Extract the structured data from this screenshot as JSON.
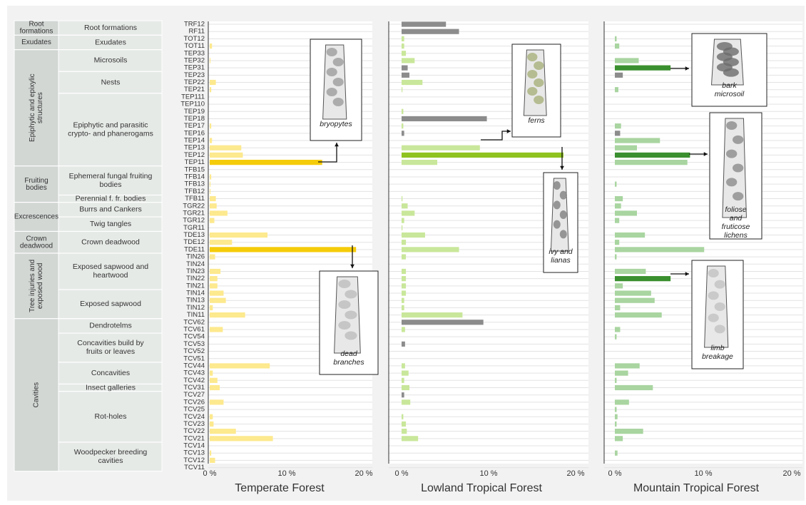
{
  "chart_data": {
    "type": "bar",
    "orientation": "horizontal",
    "facets": [
      {
        "title": "Temperate Forest",
        "xticks": [
          "0 %",
          "10 %",
          "20 %"
        ],
        "xlim": [
          0,
          20
        ]
      },
      {
        "title": "Lowland Tropical Forest",
        "xticks": [
          "0 %",
          "10 %",
          "20 %"
        ],
        "xlim": [
          0,
          20
        ]
      },
      {
        "title": "Mountain Tropical Forest",
        "xticks": [
          "0 %",
          "10 %",
          "20 %"
        ],
        "xlim": [
          0,
          20
        ]
      }
    ],
    "colors": {
      "temperate_light": "#fde98e",
      "temperate_highlight": "#f5cc0a",
      "lowland_light": "#c9e79a",
      "lowland_highlight": "#8fc31f",
      "lowland_grey": "#8c8c8c",
      "mountain_light": "#a9d5a0",
      "mountain_highlight": "#3a8f2e",
      "mountain_grey": "#8c8c8c",
      "group_bg": "#d2d7d4",
      "form_bg": "#e6eae7"
    },
    "categories": [
      "TRF12",
      "RF11",
      "TOT12",
      "TOT11",
      "TEP33",
      "TEP32",
      "TEP31",
      "TEP23",
      "TEP22",
      "TEP21",
      "TEP111",
      "TEP110",
      "TEP19",
      "TEP18",
      "TEP17",
      "TEP16",
      "TEP14",
      "TEP13",
      "TEP12",
      "TEP11",
      "TFB15",
      "TFB14",
      "TFB13",
      "TFB12",
      "TFB11",
      "TGR22",
      "TGR21",
      "TGR12",
      "TGR11",
      "TDE13",
      "TDE12",
      "TDE11",
      "TIN26",
      "TIN24",
      "TIN23",
      "TIN22",
      "TIN21",
      "TIN14",
      "TIN13",
      "TIN12",
      "TIN11",
      "TCV62",
      "TCV61",
      "TCV54",
      "TCV53",
      "TCV52",
      "TCV51",
      "TCV44",
      "TCV43",
      "TCV42",
      "TCV31",
      "TCV27",
      "TCV26",
      "TCV25",
      "TCV24",
      "TCV23",
      "TCV22",
      "TCV21",
      "TCV14",
      "TCV13",
      "TCV12",
      "TCV11"
    ],
    "series": [
      {
        "name": "Temperate Forest",
        "values": [
          0,
          0,
          0,
          0.3,
          0,
          0.1,
          0,
          0,
          0.8,
          0.2,
          0,
          0,
          0,
          0,
          0.2,
          0,
          0.3,
          4.1,
          4.3,
          14.6,
          0,
          0.2,
          0.1,
          0.1,
          0.8,
          0.9,
          2.3,
          0.6,
          0,
          7.5,
          2.9,
          19,
          0.7,
          0,
          1.4,
          1,
          1,
          1.8,
          2.1,
          0.4,
          4.6,
          0,
          1.7,
          0,
          0,
          0,
          0,
          7.8,
          0.4,
          1,
          1.3,
          0,
          1.8,
          0,
          0.4,
          0.5,
          3.4,
          8.2,
          0,
          0.2,
          0.7,
          0
        ]
      },
      {
        "name": "Lowland Tropical Forest",
        "values": [
          5.1,
          6.6,
          0.3,
          0.3,
          0.5,
          1.5,
          0.7,
          0.9,
          2.4,
          0.1,
          0,
          0,
          0.2,
          9.8,
          0.2,
          0.3,
          0,
          9,
          18.6,
          4.1,
          0,
          0,
          0,
          0,
          0.1,
          0.7,
          1.5,
          0.3,
          0.1,
          2.7,
          0.5,
          6.6,
          0.5,
          0,
          0.5,
          0.5,
          0.5,
          0.5,
          0.3,
          0.3,
          7,
          9.4,
          0.4,
          0,
          0.4,
          0,
          0,
          0.4,
          0.8,
          0.3,
          0.9,
          0.3,
          1,
          0,
          0.2,
          0.5,
          0.6,
          1.9,
          0,
          0,
          0,
          0
        ]
      },
      {
        "name": "Mountain Tropical Forest",
        "values": [
          0,
          0,
          0.2,
          0.5,
          0,
          2.7,
          6.3,
          0.9,
          0,
          0.4,
          0,
          0,
          0,
          0,
          0.7,
          0.6,
          5.1,
          2.5,
          8.5,
          8.2,
          0,
          0,
          0.2,
          0,
          0.9,
          0.7,
          2.5,
          0.5,
          0,
          3.4,
          0.5,
          10.1,
          0.2,
          0,
          3.5,
          6.3,
          0.9,
          4.1,
          4.5,
          0.6,
          5.3,
          0,
          0.6,
          0.2,
          0,
          0,
          0,
          2.8,
          1.5,
          0.2,
          4.3,
          0,
          1.6,
          0.2,
          0.3,
          0.2,
          3.2,
          0.9,
          0,
          0.3,
          0,
          0
        ]
      }
    ],
    "highlight": [
      {
        "facet": 0,
        "category": "TEP11",
        "color": "temperate_highlight"
      },
      {
        "facet": 0,
        "category": "TDE11",
        "color": "temperate_highlight"
      },
      {
        "facet": 1,
        "category": "TEP14",
        "color": "lowland_highlight"
      },
      {
        "facet": 1,
        "category": "TEP12",
        "color": "lowland_highlight"
      },
      {
        "facet": 2,
        "category": "TEP31",
        "color": "mountain_highlight"
      },
      {
        "facet": 2,
        "category": "TEP12",
        "color": "mountain_highlight"
      },
      {
        "facet": 2,
        "category": "TIN22",
        "color": "mountain_highlight"
      }
    ],
    "grey_bars": [
      {
        "facet": 1,
        "categories": [
          "TRF12",
          "RF11",
          "TEP31",
          "TEP23",
          "TEP18",
          "TEP16",
          "TCV62",
          "TCV53",
          "TCV27"
        ]
      },
      {
        "facet": 2,
        "categories": [
          "TEP23",
          "TEP16"
        ]
      }
    ],
    "groups": [
      {
        "name": "Root formations",
        "start": 0,
        "end": 1,
        "forms": [
          {
            "name": "Root formations",
            "start": 0,
            "end": 1
          }
        ]
      },
      {
        "name": "Exudates",
        "start": 2,
        "end": 3,
        "forms": [
          {
            "name": "Exudates",
            "start": 2,
            "end": 3
          }
        ]
      },
      {
        "name": "Epiphytic and epixylic structures",
        "start": 4,
        "end": 19,
        "forms": [
          {
            "name": "Microsoils",
            "start": 4,
            "end": 6
          },
          {
            "name": "Nests",
            "start": 7,
            "end": 9
          },
          {
            "name": "Epiphytic and parasitic crypto- and phanerogams",
            "start": 10,
            "end": 19
          }
        ]
      },
      {
        "name": "Fruiting bodies",
        "start": 20,
        "end": 24,
        "forms": [
          {
            "name": "Ephemeral fungal fruiting bodies",
            "start": 20,
            "end": 23
          },
          {
            "name": "Perennial f. fr. bodies",
            "start": 24,
            "end": 24
          }
        ]
      },
      {
        "name": "Excrescences",
        "start": 25,
        "end": 28,
        "forms": [
          {
            "name": "Burrs and Cankers",
            "start": 25,
            "end": 26
          },
          {
            "name": "Twig tangles",
            "start": 27,
            "end": 28
          }
        ]
      },
      {
        "name": "Crown deadwood",
        "start": 29,
        "end": 31,
        "forms": [
          {
            "name": "Crown deadwood",
            "start": 29,
            "end": 31
          }
        ]
      },
      {
        "name": "Tree injuries and exposed wood",
        "start": 32,
        "end": 40,
        "forms": [
          {
            "name": "Exposed sapwood and heartwood",
            "start": 32,
            "end": 36
          },
          {
            "name": "Exposed sapwood",
            "start": 37,
            "end": 40
          }
        ]
      },
      {
        "name": "Cavities",
        "start": 41,
        "end": 61,
        "forms": [
          {
            "name": "Dendrotelms",
            "start": 41,
            "end": 42
          },
          {
            "name": "Concavities build by fruits or leaves",
            "start": 43,
            "end": 46
          },
          {
            "name": "Concavities",
            "start": 47,
            "end": 49
          },
          {
            "name": "Insect galleries",
            "start": 50,
            "end": 50
          },
          {
            "name": "Rot-holes",
            "start": 51,
            "end": 57
          },
          {
            "name": "Woodpecker breeding cavities",
            "start": 58,
            "end": 61
          }
        ]
      }
    ],
    "callouts": [
      {
        "facet": 0,
        "category": "TEP11",
        "label": "bryopytes",
        "icon": "tree-trunk-moss-icon"
      },
      {
        "facet": 0,
        "category": "TDE11",
        "label": "dead branches",
        "icon": "dead-tree-icon"
      },
      {
        "facet": 1,
        "category": "TEP14",
        "label": "ferns",
        "icon": "tree-trunk-ferns-icon"
      },
      {
        "facet": 1,
        "category": "TEP12",
        "label": "ivy and lianas",
        "icon": "tree-trunk-ivy-icon"
      },
      {
        "facet": 2,
        "category": "TEP31",
        "label": "bark microsoil",
        "icon": "bark-microsoil-icon"
      },
      {
        "facet": 2,
        "category": "TEP12",
        "label": "foliose and fruticose lichens",
        "icon": "tree-trunk-lichens-icon"
      },
      {
        "facet": 2,
        "category": "TIN22",
        "label": "limb breakage",
        "icon": "broken-limb-tree-icon"
      }
    ]
  }
}
